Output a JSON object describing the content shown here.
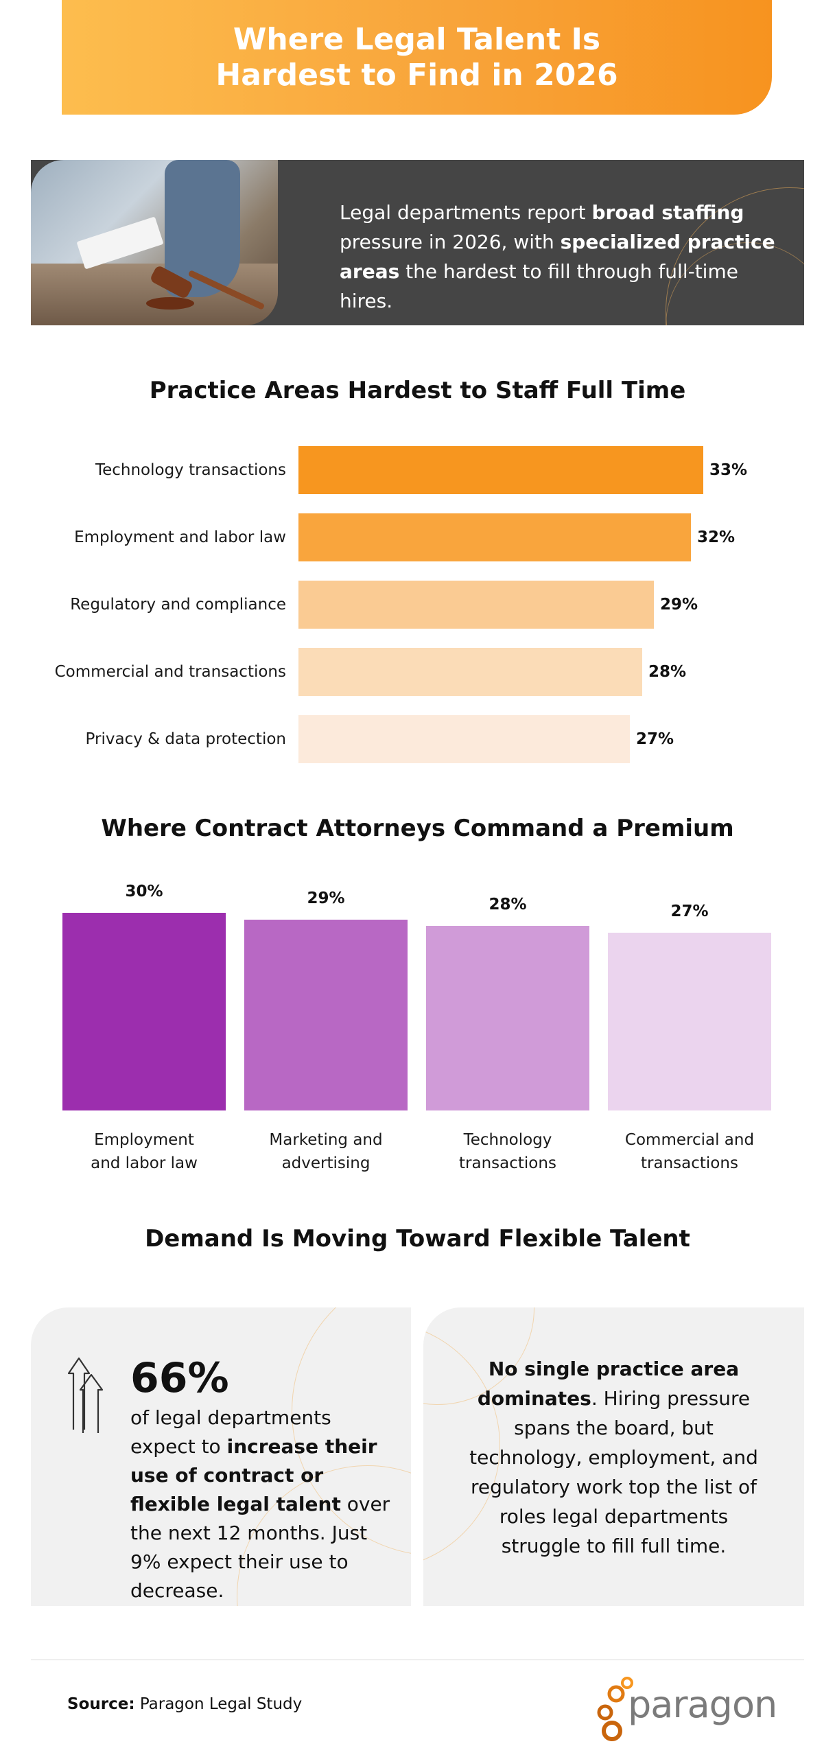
{
  "header": {
    "title": "Where Legal Talent Is Hardest to Find in 2026"
  },
  "intro": {
    "parts": [
      {
        "text": "Legal departments report ",
        "bold": false
      },
      {
        "text": "broad staffing",
        "bold": true
      },
      {
        "text": " pressure in 2026, with ",
        "bold": false
      },
      {
        "text": "specialized practice areas",
        "bold": true
      },
      {
        "text": " the hardest to fill through full-time hires.",
        "bold": false
      }
    ]
  },
  "chart_data": [
    {
      "type": "bar",
      "orientation": "horizontal",
      "title": "Practice Areas Hardest to Staff Full Time",
      "categories": [
        "Technology transactions",
        "Employment and labor law",
        "Regulatory and compliance",
        "Commercial and transactions",
        "Privacy & data protection"
      ],
      "values": [
        33,
        32,
        29,
        28,
        27
      ],
      "value_labels": [
        "33%",
        "32%",
        "29%",
        "28%",
        "27%"
      ],
      "colors": [
        "#f7961f",
        "#f9a53d",
        "#facb93",
        "#fbdcb7",
        "#fceadb"
      ],
      "xlabel": "",
      "ylabel": "",
      "xlim": [
        0,
        33
      ],
      "grid": false
    },
    {
      "type": "bar",
      "orientation": "vertical",
      "title": "Where Contract Attorneys Command a Premium",
      "categories": [
        "Employment\nand labor law",
        "Marketing and\nadvertising",
        "Technology\ntransactions",
        "Commercial and\ntransactions"
      ],
      "values": [
        30,
        29,
        28,
        27
      ],
      "value_labels": [
        "30%",
        "29%",
        "28%",
        "27%"
      ],
      "colors": [
        "#9c2eae",
        "#b868c4",
        "#d09bd8",
        "#ebd4ee"
      ],
      "xlabel": "",
      "ylabel": "",
      "ylim": [
        0,
        30
      ],
      "grid": false
    }
  ],
  "flex_section": {
    "title": "Demand Is Moving Toward Flexible Talent"
  },
  "left_card": {
    "icon": "double-up-arrow-icon",
    "stat": "66%",
    "parts": [
      {
        "text": "of legal departments expect to ",
        "bold": false
      },
      {
        "text": "increase their use of contract or flexible legal talent",
        "bold": true
      },
      {
        "text": " over the next 12 months. Just 9% expect their use to decrease.",
        "bold": false
      }
    ]
  },
  "right_card": {
    "parts": [
      {
        "text": "No single practice area dominates",
        "bold": true
      },
      {
        "text": ". Hiring pressure spans the board, but technology, employment, and regulatory work top the list of roles legal departments struggle to fill full time.",
        "bold": false
      }
    ]
  },
  "footer": {
    "source_label": "Source:",
    "source_text": " Paragon Legal Study",
    "logo_text": "paragon",
    "logo_colors": [
      "#f7961f",
      "#e07a12",
      "#c9650c"
    ]
  }
}
